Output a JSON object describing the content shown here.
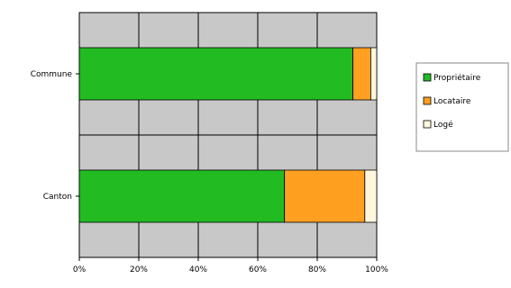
{
  "chart_data": {
    "type": "bar",
    "orientation": "horizontal",
    "stacked": "percent",
    "categories": [
      "Commune",
      "Canton"
    ],
    "series": [
      {
        "name": "Propriétaire",
        "color": "#22bb22",
        "values": [
          92,
          69
        ]
      },
      {
        "name": "Locataire",
        "color": "#ffa021",
        "values": [
          6,
          27
        ]
      },
      {
        "name": "Logé",
        "color": "#fff8dc",
        "values": [
          2,
          4
        ]
      }
    ],
    "xlim": [
      0,
      100
    ],
    "x_ticks": [
      "0%",
      "20%",
      "40%",
      "60%",
      "80%",
      "100%"
    ],
    "legend_position": "right",
    "grid": true,
    "plot_background": "#c8c8c8"
  }
}
